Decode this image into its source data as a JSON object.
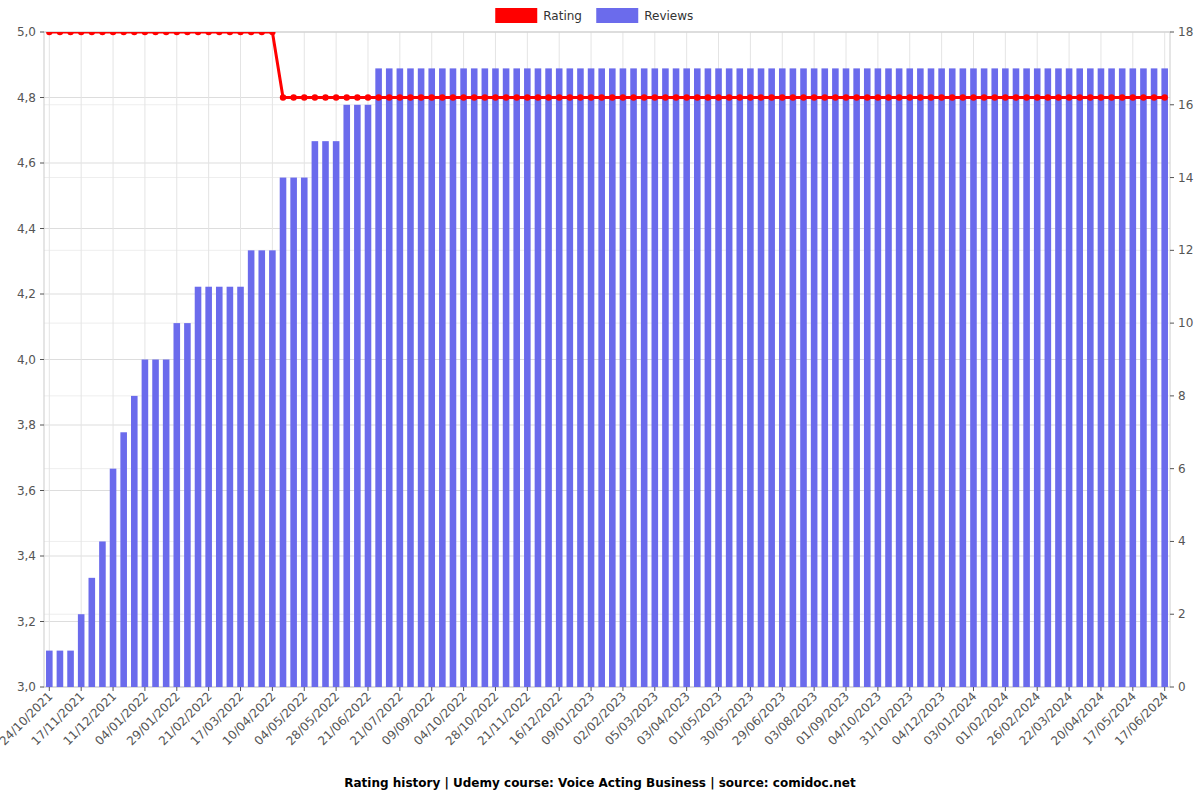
{
  "chart_data": {
    "type": "bar",
    "title": "Rating history | Udemy course: Voice Acting Business | source: comidoc.net",
    "categories": [
      "24/10/2021",
      null,
      null,
      "17/11/2021",
      null,
      null,
      "11/12/2021",
      null,
      null,
      "04/01/2022",
      null,
      null,
      "29/01/2022",
      null,
      null,
      "21/02/2022",
      null,
      null,
      "17/03/2022",
      null,
      null,
      "10/04/2022",
      null,
      null,
      "04/05/2022",
      null,
      null,
      "28/05/2022",
      null,
      null,
      "21/06/2022",
      null,
      null,
      "21/07/2022",
      null,
      null,
      "09/09/2022",
      null,
      null,
      "04/10/2022",
      null,
      null,
      "28/10/2022",
      null,
      null,
      "21/11/2022",
      null,
      null,
      "16/12/2022",
      null,
      null,
      "09/01/2023",
      null,
      null,
      "02/02/2023",
      null,
      null,
      "05/03/2023",
      null,
      null,
      "03/04/2023",
      null,
      null,
      "01/05/2023",
      null,
      null,
      "30/05/2023",
      null,
      null,
      "29/06/2023",
      null,
      null,
      "03/08/2023",
      null,
      null,
      "01/09/2023",
      null,
      null,
      "04/10/2023",
      null,
      null,
      "31/10/2023",
      null,
      null,
      "04/12/2023",
      null,
      null,
      "03/01/2024",
      null,
      null,
      "01/02/2024",
      null,
      null,
      "26/02/2024",
      null,
      null,
      "22/03/2024",
      null,
      null,
      "20/04/2024",
      null,
      null,
      "17/05/2024",
      null,
      null,
      "17/06/2024"
    ],
    "series": [
      {
        "name": "Rating",
        "type": "line",
        "color": "#ff0000",
        "marker": "circle",
        "values": [
          5,
          5,
          5,
          5,
          5,
          5,
          5,
          5,
          5,
          5,
          5,
          5,
          5,
          5,
          5,
          5,
          5,
          5,
          5,
          5,
          5,
          5,
          4.8,
          4.8,
          4.8,
          4.8,
          4.8,
          4.8,
          4.8,
          4.8,
          4.8,
          4.8,
          4.8,
          4.8,
          4.8,
          4.8,
          4.8,
          4.8,
          4.8,
          4.8,
          4.8,
          4.8,
          4.8,
          4.8,
          4.8,
          4.8,
          4.8,
          4.8,
          4.8,
          4.8,
          4.8,
          4.8,
          4.8,
          4.8,
          4.8,
          4.8,
          4.8,
          4.8,
          4.8,
          4.8,
          4.8,
          4.8,
          4.8,
          4.8,
          4.8,
          4.8,
          4.8,
          4.8,
          4.8,
          4.8,
          4.8,
          4.8,
          4.8,
          4.8,
          4.8,
          4.8,
          4.8,
          4.8,
          4.8,
          4.8,
          4.8,
          4.8,
          4.8,
          4.8,
          4.8,
          4.8,
          4.8,
          4.8,
          4.8,
          4.8,
          4.8,
          4.8,
          4.8,
          4.8,
          4.8,
          4.8,
          4.8,
          4.8,
          4.8,
          4.8,
          4.8,
          4.8,
          4.8,
          4.8,
          4.8,
          4.8
        ]
      },
      {
        "name": "Reviews",
        "type": "bar",
        "color": "#6b6bec",
        "axis": "y2",
        "values": [
          1,
          1,
          1,
          2,
          3,
          4,
          6,
          7,
          8,
          9,
          9,
          9,
          10,
          10,
          11,
          11,
          11,
          11,
          11,
          12,
          12,
          12,
          14,
          14,
          14,
          15,
          15,
          15,
          16,
          16,
          16,
          17,
          17,
          17,
          17,
          17,
          17,
          17,
          17,
          17,
          17,
          17,
          17,
          17,
          17,
          17,
          17,
          17,
          17,
          17,
          17,
          17,
          17,
          17,
          17,
          17,
          17,
          17,
          17,
          17,
          17,
          17,
          17,
          17,
          17,
          17,
          17,
          17,
          17,
          17,
          17,
          17,
          17,
          17,
          17,
          17,
          17,
          17,
          17,
          17,
          17,
          17,
          17,
          17,
          17,
          17,
          17,
          17,
          17,
          17,
          17,
          17,
          17,
          17,
          17,
          17,
          17,
          17,
          17,
          17,
          17,
          17,
          17,
          17,
          17,
          17
        ]
      }
    ],
    "ylim": [
      3,
      5
    ],
    "yticks": [
      {
        "value": 3,
        "label": "3,0"
      },
      {
        "value": 3.2,
        "label": "3,2"
      },
      {
        "value": 3.4,
        "label": "3,4"
      },
      {
        "value": 3.6,
        "label": "3,6"
      },
      {
        "value": 3.8,
        "label": "3,8"
      },
      {
        "value": 4,
        "label": "4,0"
      },
      {
        "value": 4.2,
        "label": "4,2"
      },
      {
        "value": 4.4,
        "label": "4,4"
      },
      {
        "value": 4.6,
        "label": "4,6"
      },
      {
        "value": 4.8,
        "label": "4,8"
      },
      {
        "value": 5,
        "label": "5,0"
      }
    ],
    "y2lim": [
      0,
      18
    ],
    "y2ticks": [
      0,
      2,
      4,
      6,
      8,
      10,
      12,
      14,
      16,
      18
    ],
    "grid": true,
    "legend": "top"
  }
}
